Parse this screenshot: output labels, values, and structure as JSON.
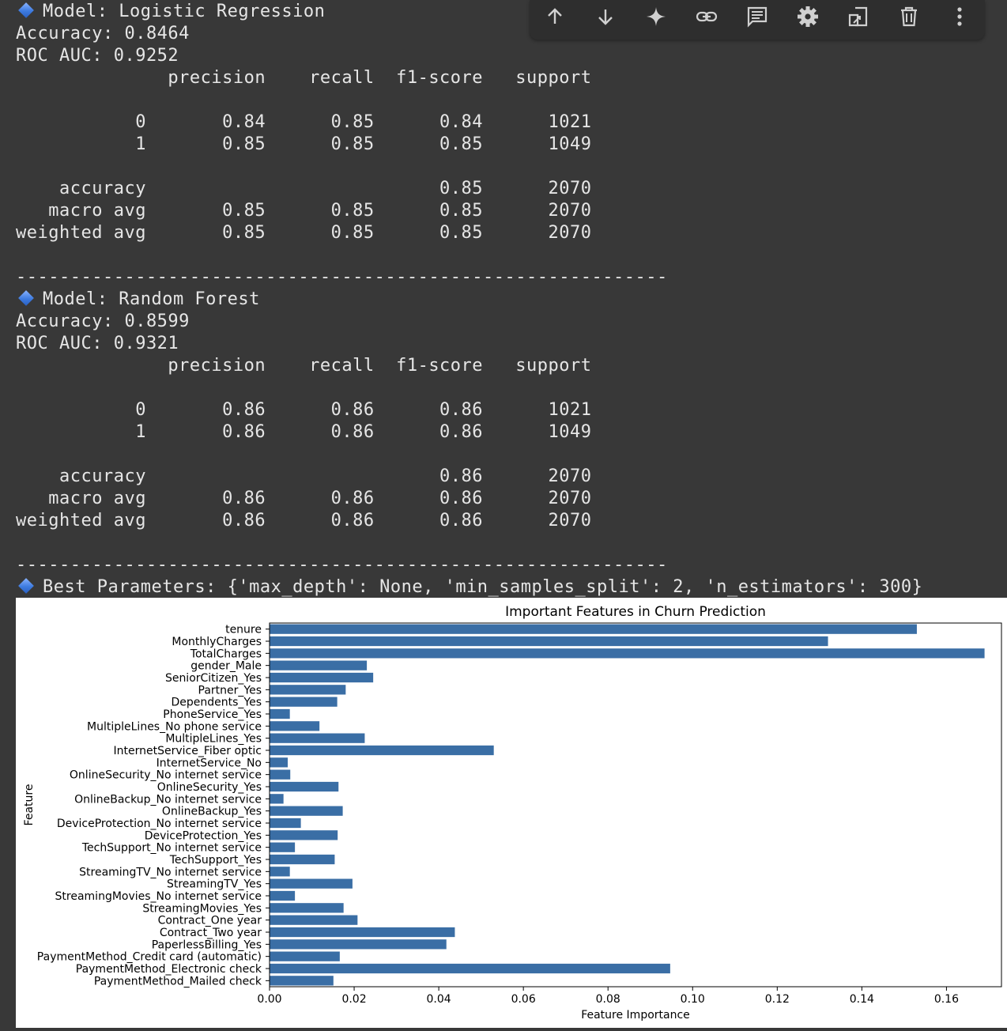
{
  "toolbar": {
    "buttons": [
      {
        "name": "move-up-button",
        "icon": "arrow-up-icon"
      },
      {
        "name": "move-down-button",
        "icon": "arrow-down-icon"
      },
      {
        "name": "gemini-button",
        "icon": "sparkle-icon"
      },
      {
        "name": "link-button",
        "icon": "link-icon"
      },
      {
        "name": "comment-button",
        "icon": "comment-icon"
      },
      {
        "name": "settings-button",
        "icon": "gear-icon"
      },
      {
        "name": "mirror-cell-button",
        "icon": "mirror-icon"
      },
      {
        "name": "delete-button",
        "icon": "trash-icon"
      },
      {
        "name": "more-button",
        "icon": "more-vertical-icon"
      }
    ]
  },
  "output": {
    "lines": [
      {
        "icon": true,
        "text": "Model: Logistic Regression"
      },
      {
        "icon": false,
        "text": "Accuracy: 0.8464"
      },
      {
        "icon": false,
        "text": "ROC AUC: 0.9252"
      },
      {
        "icon": false,
        "text": "              precision    recall  f1-score   support"
      },
      {
        "icon": false,
        "text": ""
      },
      {
        "icon": false,
        "text": "           0       0.84      0.85      0.84      1021"
      },
      {
        "icon": false,
        "text": "           1       0.85      0.85      0.85      1049"
      },
      {
        "icon": false,
        "text": ""
      },
      {
        "icon": false,
        "text": "    accuracy                           0.85      2070"
      },
      {
        "icon": false,
        "text": "   macro avg       0.85      0.85      0.85      2070"
      },
      {
        "icon": false,
        "text": "weighted avg       0.85      0.85      0.85      2070"
      },
      {
        "icon": false,
        "text": ""
      },
      {
        "icon": false,
        "text": "------------------------------------------------------------"
      },
      {
        "icon": true,
        "text": "Model: Random Forest"
      },
      {
        "icon": false,
        "text": "Accuracy: 0.8599"
      },
      {
        "icon": false,
        "text": "ROC AUC: 0.9321"
      },
      {
        "icon": false,
        "text": "              precision    recall  f1-score   support"
      },
      {
        "icon": false,
        "text": ""
      },
      {
        "icon": false,
        "text": "           0       0.86      0.86      0.86      1021"
      },
      {
        "icon": false,
        "text": "           1       0.86      0.86      0.86      1049"
      },
      {
        "icon": false,
        "text": ""
      },
      {
        "icon": false,
        "text": "    accuracy                           0.86      2070"
      },
      {
        "icon": false,
        "text": "   macro avg       0.86      0.86      0.86      2070"
      },
      {
        "icon": false,
        "text": "weighted avg       0.86      0.86      0.86      2070"
      },
      {
        "icon": false,
        "text": ""
      },
      {
        "icon": false,
        "text": "------------------------------------------------------------"
      },
      {
        "icon": true,
        "text": "Best Parameters: {'max_depth': None, 'min_samples_split': 2, 'n_estimators': 300}"
      }
    ],
    "text_color": "#e6e6e6",
    "background": "#383838"
  },
  "chart_data": {
    "type": "bar",
    "orientation": "horizontal",
    "title": "Important Features in Churn Prediction",
    "xlabel": "Feature Importance",
    "ylabel": "Feature",
    "xlim": [
      0,
      0.173
    ],
    "xticks": [
      "0.00",
      "0.02",
      "0.04",
      "0.06",
      "0.08",
      "0.10",
      "0.12",
      "0.14",
      "0.16"
    ],
    "bar_color": "#3a6ea5",
    "grid": false,
    "categories": [
      "tenure",
      "MonthlyCharges",
      "TotalCharges",
      "gender_Male",
      "SeniorCitizen_Yes",
      "Partner_Yes",
      "Dependents_Yes",
      "PhoneService_Yes",
      "MultipleLines_No phone service",
      "MultipleLines_Yes",
      "InternetService_Fiber optic",
      "InternetService_No",
      "OnlineSecurity_No internet service",
      "OnlineSecurity_Yes",
      "OnlineBackup_No internet service",
      "OnlineBackup_Yes",
      "DeviceProtection_No internet service",
      "DeviceProtection_Yes",
      "TechSupport_No internet service",
      "TechSupport_Yes",
      "StreamingTV_No internet service",
      "StreamingTV_Yes",
      "StreamingMovies_No internet service",
      "StreamingMovies_Yes",
      "Contract_One year",
      "Contract_Two year",
      "PaperlessBilling_Yes",
      "PaymentMethod_Credit card (automatic)",
      "PaymentMethod_Electronic check",
      "PaymentMethod_Mailed check"
    ],
    "values": [
      0.153,
      0.132,
      0.169,
      0.023,
      0.0245,
      0.018,
      0.016,
      0.0048,
      0.0118,
      0.0225,
      0.053,
      0.0043,
      0.0049,
      0.0163,
      0.0033,
      0.0173,
      0.0074,
      0.0161,
      0.006,
      0.0154,
      0.0048,
      0.0196,
      0.006,
      0.0175,
      0.0208,
      0.0438,
      0.0418,
      0.0166,
      0.0947,
      0.0151
    ]
  }
}
